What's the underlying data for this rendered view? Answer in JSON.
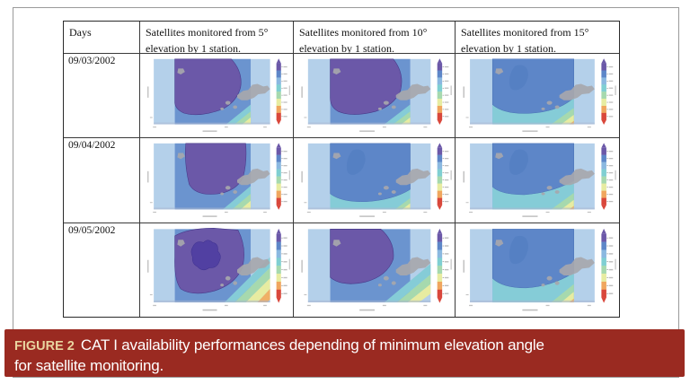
{
  "figure": {
    "table": {
      "header_days": "Days",
      "header_columns": [
        "Satellites monitored from 5° elevation by 1 station.",
        "Satellites monitored from 10° elevation by 1 station.",
        "Satellites monitored from 15° elevation by 1 station."
      ],
      "rows": [
        {
          "date": "09/03/2002",
          "maps": [
            {
              "variant": "purple_large_a"
            },
            {
              "variant": "purple_large_b"
            },
            {
              "variant": "blue_high"
            }
          ]
        },
        {
          "date": "09/04/2002",
          "maps": [
            {
              "variant": "purple_top"
            },
            {
              "variant": "blue_mid"
            },
            {
              "variant": "blue_deep"
            }
          ]
        },
        {
          "date": "09/05/2002",
          "maps": [
            {
              "variant": "purple_core"
            },
            {
              "variant": "purple_round"
            },
            {
              "variant": "blue_low"
            }
          ]
        }
      ]
    },
    "caption": {
      "label": "FIGURE 2",
      "text": "CAT I availability performances depending of minimum elevation angle for satellite monitoring."
    },
    "colors": {
      "pale_band": "#b4d0ea",
      "band_bg": "#6b94cf",
      "blue_bg": "#7ea8da",
      "blue": "#5d86c8",
      "korea": "#4f7bbf",
      "purple": "#6b58a8",
      "purple_dark": "#5140a2",
      "cyan": "#85ccd7",
      "green": "#a6d9ae",
      "yellow": "#e7eca1",
      "orange": "#f0b066",
      "red": "#d9473b",
      "land": "#a7a7ac",
      "caption_bg": "#9a2a21",
      "caption_label": "#e9d5a0"
    },
    "colorbar": [
      "#6b58a8",
      "#5d86c8",
      "#8ab8e0",
      "#7fcfd2",
      "#a6d9ae",
      "#e7eca1",
      "#f0a65e",
      "#d9473b"
    ]
  }
}
